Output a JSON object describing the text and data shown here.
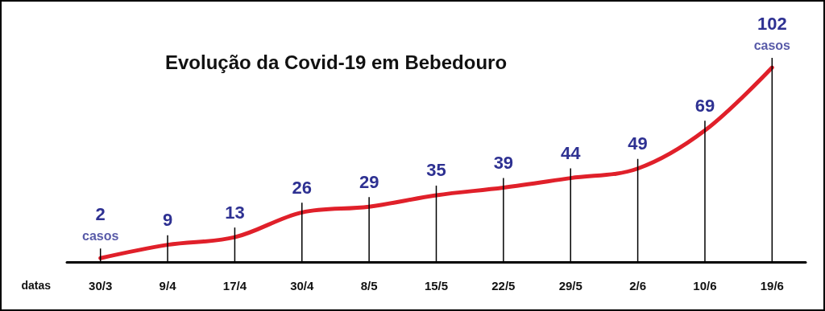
{
  "chart_data": {
    "type": "line",
    "title": "Evolução da Covid-19 em Bebedouro",
    "xlabel": "datas",
    "categories": [
      "30/3",
      "9/4",
      "17/4",
      "30/4",
      "8/5",
      "15/5",
      "22/5",
      "29/5",
      "2/6",
      "10/6",
      "19/6"
    ],
    "series": [
      {
        "color": "#e0202a",
        "values": [
          2,
          9,
          13,
          26,
          29,
          35,
          39,
          44,
          49,
          69,
          102
        ]
      }
    ],
    "data_labels": true,
    "marker": "none",
    "line_style": "solid",
    "tick_labels": "x",
    "annotations": [
      {
        "text": "casos",
        "x": "30/3",
        "y": 2
      },
      {
        "text": "casos",
        "x": "19/6",
        "y": 102
      }
    ]
  }
}
